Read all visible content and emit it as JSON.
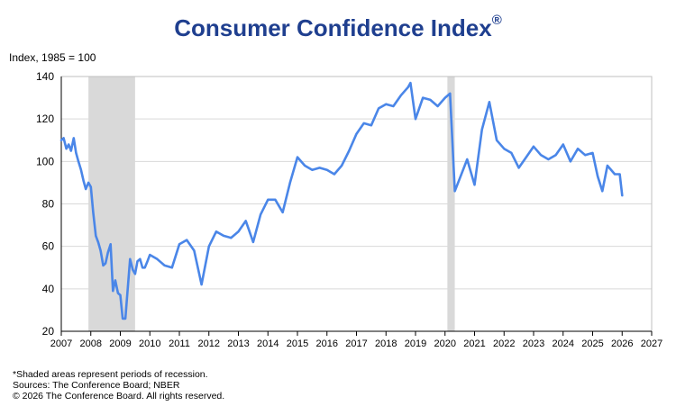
{
  "chart_data": {
    "type": "line",
    "title": "Consumer Confidence Index",
    "title_mark": "®",
    "ylabel": "Index, 1985 = 100",
    "xlabel": "",
    "xlim": [
      2007,
      2027
    ],
    "ylim": [
      20,
      140
    ],
    "yticks": [
      20,
      40,
      60,
      80,
      100,
      120,
      140
    ],
    "xticks": [
      "2007",
      "2008",
      "2009",
      "2010",
      "2011",
      "2012",
      "2013",
      "2014",
      "2015",
      "2016",
      "2017",
      "2018",
      "2019",
      "2020",
      "2021",
      "2022",
      "2023",
      "2024",
      "2025",
      "2026",
      "2027"
    ],
    "grid": true,
    "line_color": "#4a86e8",
    "recession_color": "#d9d9d9",
    "recessions": [
      [
        2007.92,
        2009.5
      ],
      [
        2020.08,
        2020.33
      ]
    ],
    "series": [
      {
        "x": [
          2007.0,
          2007.08,
          2007.17,
          2007.25,
          2007.33,
          2007.42,
          2007.5,
          2007.58,
          2007.67,
          2007.75,
          2007.83,
          2007.92,
          2008.0,
          2008.08,
          2008.17,
          2008.25,
          2008.33,
          2008.42,
          2008.5,
          2008.58,
          2008.67,
          2008.75,
          2008.83,
          2008.92,
          2009.0,
          2009.08,
          2009.17,
          2009.25,
          2009.33,
          2009.42,
          2009.5,
          2009.58,
          2009.67,
          2009.75,
          2009.83,
          2009.92,
          2010.0,
          2010.25,
          2010.5,
          2010.75,
          2011.0,
          2011.25,
          2011.5,
          2011.75,
          2012.0,
          2012.25,
          2012.5,
          2012.75,
          2013.0,
          2013.25,
          2013.5,
          2013.75,
          2014.0,
          2014.25,
          2014.5,
          2014.75,
          2015.0,
          2015.25,
          2015.5,
          2015.75,
          2016.0,
          2016.25,
          2016.5,
          2016.75,
          2017.0,
          2017.25,
          2017.5,
          2017.75,
          2018.0,
          2018.25,
          2018.5,
          2018.75,
          2018.83,
          2019.0,
          2019.25,
          2019.5,
          2019.75,
          2020.0,
          2020.17,
          2020.33,
          2020.5,
          2020.75,
          2021.0,
          2021.25,
          2021.5,
          2021.75,
          2022.0,
          2022.25,
          2022.5,
          2022.75,
          2023.0,
          2023.25,
          2023.5,
          2023.75,
          2024.0,
          2024.25,
          2024.5,
          2024.75,
          2025.0,
          2025.17,
          2025.33,
          2025.5,
          2025.75,
          2025.92,
          2026.0
        ],
        "y": [
          110,
          111,
          106,
          108,
          105,
          111,
          104,
          100,
          96,
          91,
          87,
          90,
          88,
          76,
          65,
          62,
          58,
          51,
          52,
          57,
          61,
          39,
          44,
          38,
          37,
          26,
          26,
          40,
          54,
          49,
          47,
          53,
          54,
          50,
          50,
          53,
          56,
          54,
          51,
          50,
          61,
          63,
          58,
          42,
          60,
          67,
          65,
          64,
          67,
          72,
          62,
          75,
          82,
          82,
          76,
          90,
          102,
          98,
          96,
          97,
          96,
          94,
          98,
          105,
          113,
          118,
          117,
          125,
          127,
          126,
          131,
          135,
          137,
          120,
          130,
          129,
          126,
          130,
          132,
          86,
          92,
          101,
          89,
          115,
          128,
          110,
          106,
          104,
          97,
          102,
          107,
          103,
          101,
          103,
          108,
          100,
          106,
          103,
          104,
          93,
          86,
          98,
          94,
          94,
          84
        ]
      }
    ]
  },
  "notes": {
    "recession": "*Shaded areas represent periods of recession.",
    "sources": "Sources:  The Conference Board;  NBER",
    "copyright": "© 2026 The Conference Board. All rights reserved."
  }
}
